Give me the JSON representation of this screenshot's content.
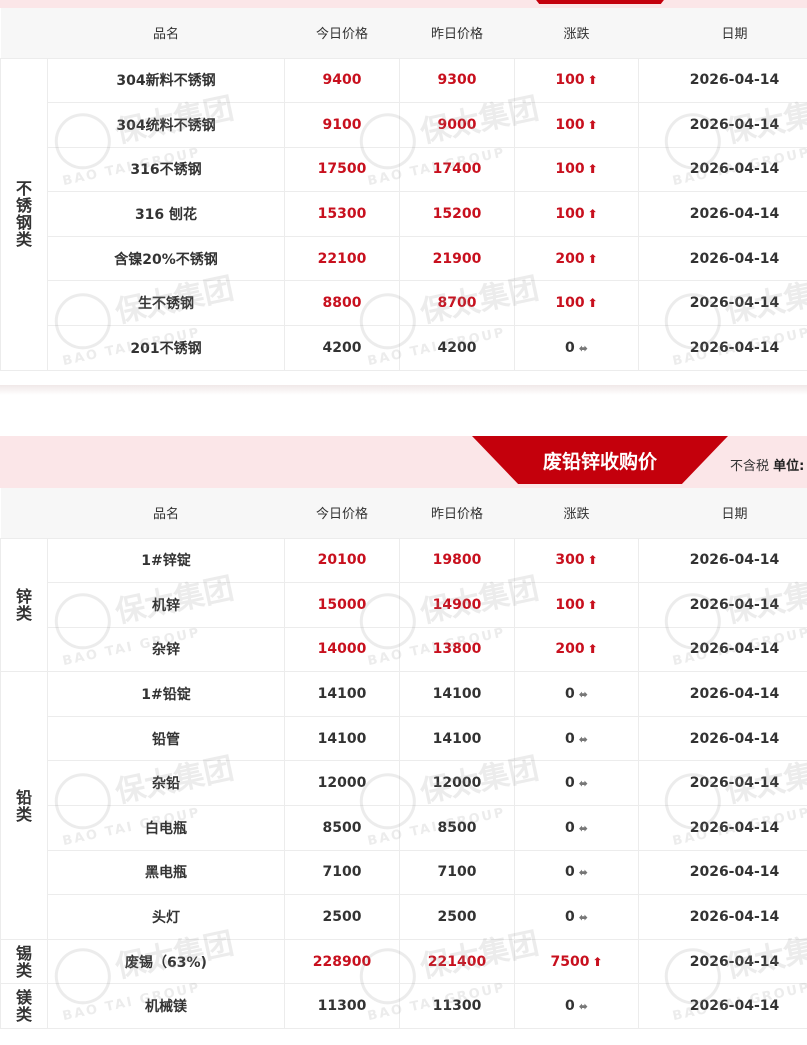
{
  "headers": [
    "品名",
    "今日价格",
    "昨日价格",
    "涨跌",
    "日期"
  ],
  "section1": {
    "groups": [
      {
        "category": "不锈钢类",
        "rows": [
          {
            "name": "304新料不锈钢",
            "today": "9400",
            "yesterday": "9300",
            "change": "100",
            "dir": "up"
          },
          {
            "name": "304统料不锈钢",
            "today": "9100",
            "yesterday": "9000",
            "change": "100",
            "dir": "up"
          },
          {
            "name": "316不锈钢",
            "today": "17500",
            "yesterday": "17400",
            "change": "100",
            "dir": "up"
          },
          {
            "name": "316 刨花",
            "today": "15300",
            "yesterday": "15200",
            "change": "100",
            "dir": "up"
          },
          {
            "name": "含镍20%不锈钢",
            "today": "22100",
            "yesterday": "21900",
            "change": "200",
            "dir": "up"
          },
          {
            "name": "生不锈钢",
            "today": "8800",
            "yesterday": "8700",
            "change": "100",
            "dir": "up"
          },
          {
            "name": "201不锈钢",
            "today": "4200",
            "yesterday": "4200",
            "change": "0",
            "dir": "flat"
          }
        ]
      }
    ]
  },
  "section2": {
    "title": "废铅锌收购价",
    "tax_note": "不含税",
    "unit_label": "单位:",
    "groups": [
      {
        "category": "锌类",
        "rows": [
          {
            "name": "1#锌锭",
            "today": "20100",
            "yesterday": "19800",
            "change": "300",
            "dir": "up"
          },
          {
            "name": "机锌",
            "today": "15000",
            "yesterday": "14900",
            "change": "100",
            "dir": "up"
          },
          {
            "name": "杂锌",
            "today": "14000",
            "yesterday": "13800",
            "change": "200",
            "dir": "up"
          }
        ]
      },
      {
        "category": "铅类",
        "rows": [
          {
            "name": "1#铅锭",
            "today": "14100",
            "yesterday": "14100",
            "change": "0",
            "dir": "flat"
          },
          {
            "name": "铅管",
            "today": "14100",
            "yesterday": "14100",
            "change": "0",
            "dir": "flat"
          },
          {
            "name": "杂铅",
            "today": "12000",
            "yesterday": "12000",
            "change": "0",
            "dir": "flat"
          },
          {
            "name": "白电瓶",
            "today": "8500",
            "yesterday": "8500",
            "change": "0",
            "dir": "flat"
          },
          {
            "name": "黑电瓶",
            "today": "7100",
            "yesterday": "7100",
            "change": "0",
            "dir": "flat"
          },
          {
            "name": "头灯",
            "today": "2500",
            "yesterday": "2500",
            "change": "0",
            "dir": "flat"
          }
        ]
      },
      {
        "category": "锡类",
        "rows": [
          {
            "name": "废锡（63%)",
            "today": "228900",
            "yesterday": "221400",
            "change": "7500",
            "dir": "up"
          }
        ]
      },
      {
        "category": "镁类",
        "rows": [
          {
            "name": "机械镁",
            "today": "11300",
            "yesterday": "11300",
            "change": "0",
            "dir": "flat"
          }
        ]
      }
    ]
  },
  "date": "2026-04-14",
  "watermark": {
    "cn": "保太集团",
    "en": "BAO TAI GROUP"
  },
  "colors": {
    "accent": "#c4000c",
    "up": "#c8101e",
    "band": "#fbe6e8"
  },
  "icons": {
    "up": "arrow-up-icon",
    "flat": "double-arrow-flat-icon"
  }
}
